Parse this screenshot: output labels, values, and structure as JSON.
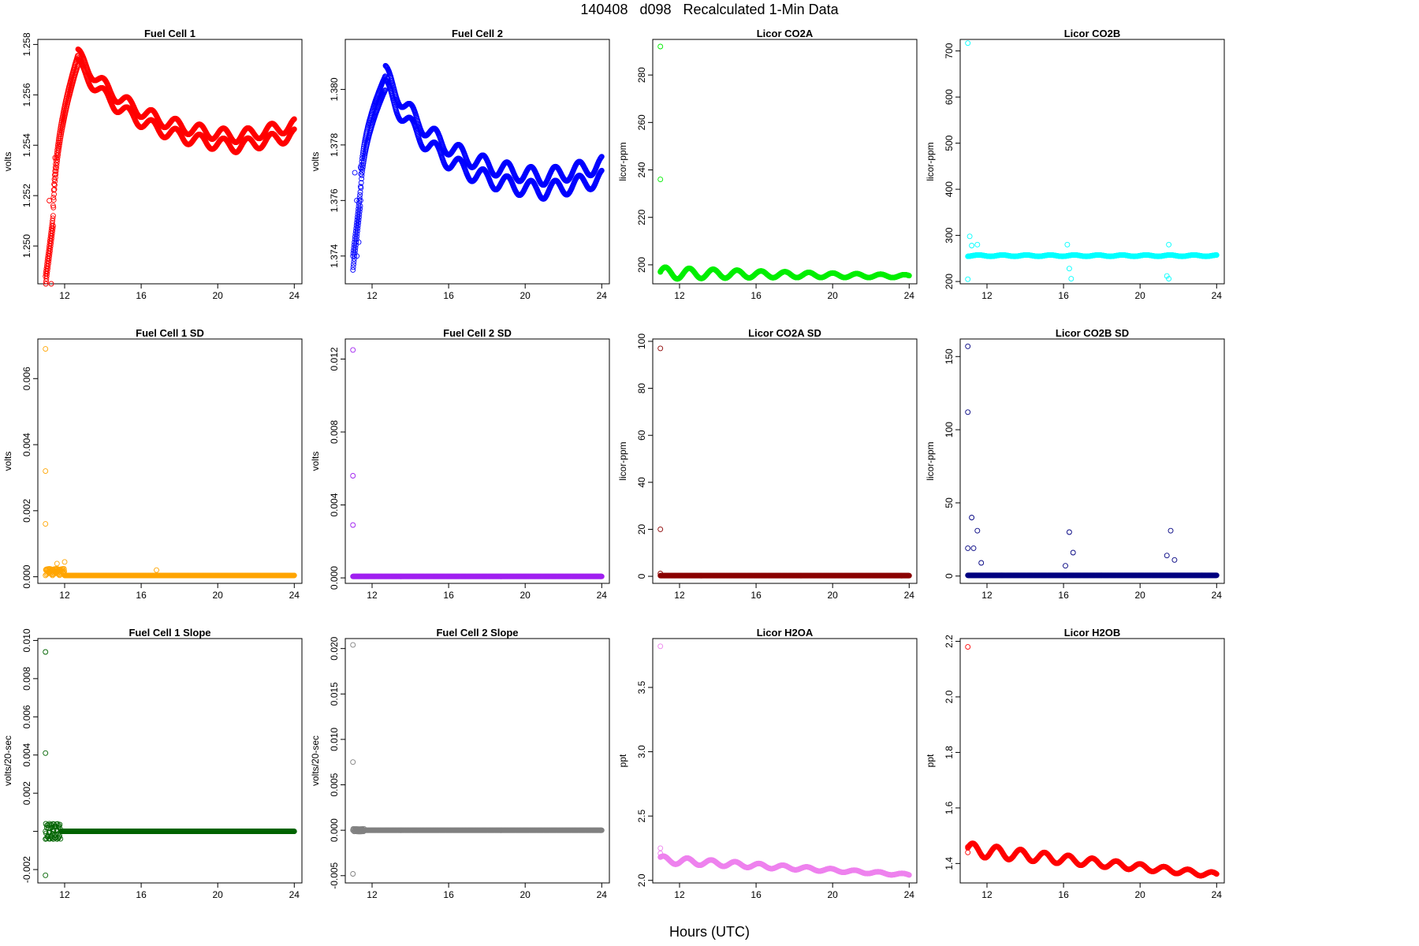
{
  "page": {
    "title": "140408   d098   Recalculated 1-Min Data",
    "xlabel": "Hours (UTC)"
  },
  "chart_data": [
    {
      "type": "scatter",
      "title": "Fuel Cell 1",
      "ylabel": "volts",
      "color": "#ff0000",
      "xlim": [
        10.6,
        24.4
      ],
      "ylim": [
        1.2485,
        1.2582
      ],
      "xticks": [
        12,
        16,
        20,
        24
      ],
      "yticks": [
        1.25,
        1.252,
        1.254,
        1.256,
        1.258
      ],
      "ytick_labels": [
        "1.250",
        "1.252",
        "1.254",
        "1.256",
        "1.258"
      ],
      "series": "fc1"
    },
    {
      "type": "scatter",
      "title": "Fuel Cell 2",
      "ylabel": "volts",
      "color": "#0000ff",
      "xlim": [
        10.6,
        24.4
      ],
      "ylim": [
        1.373,
        1.3818
      ],
      "xticks": [
        12,
        16,
        20,
        24
      ],
      "yticks": [
        1.374,
        1.376,
        1.378,
        1.38
      ],
      "ytick_labels": [
        "1.374",
        "1.376",
        "1.378",
        "1.380"
      ],
      "series": "fc2"
    },
    {
      "type": "scatter",
      "title": "Licor CO2A",
      "ylabel": "licor-ppm",
      "color": "#00ee00",
      "xlim": [
        10.6,
        24.4
      ],
      "ylim": [
        192,
        295
      ],
      "xticks": [
        12,
        16,
        20,
        24
      ],
      "yticks": [
        200,
        220,
        240,
        260,
        280
      ],
      "ytick_labels": [
        "200",
        "220",
        "240",
        "260",
        "280"
      ],
      "series": "co2a"
    },
    {
      "type": "scatter",
      "title": "Licor CO2B",
      "ylabel": "licor-ppm",
      "color": "#00ffff",
      "xlim": [
        10.6,
        24.4
      ],
      "ylim": [
        195,
        725
      ],
      "xticks": [
        12,
        16,
        20,
        24
      ],
      "yticks": [
        200,
        300,
        400,
        500,
        600,
        700
      ],
      "ytick_labels": [
        "200",
        "300",
        "400",
        "500",
        "600",
        "700"
      ],
      "series": "co2b"
    },
    {
      "type": "scatter",
      "title": "Fuel Cell 1 SD",
      "ylabel": "volts",
      "color": "#ffa500",
      "xlim": [
        10.6,
        24.4
      ],
      "ylim": [
        -0.0002,
        0.0072
      ],
      "xticks": [
        12,
        16,
        20,
        24
      ],
      "yticks": [
        0,
        0.002,
        0.004,
        0.006
      ],
      "ytick_labels": [
        "0.000",
        "0.002",
        "0.004",
        "0.006"
      ],
      "series": "fc1sd"
    },
    {
      "type": "scatter",
      "title": "Fuel Cell 2 SD",
      "ylabel": "volts",
      "color": "#a020f0",
      "xlim": [
        10.6,
        24.4
      ],
      "ylim": [
        -0.0003,
        0.0131
      ],
      "xticks": [
        12,
        16,
        20,
        24
      ],
      "yticks": [
        0,
        0.004,
        0.008,
        0.012
      ],
      "ytick_labels": [
        "0.000",
        "0.004",
        "0.008",
        "0.012"
      ],
      "series": "fc2sd"
    },
    {
      "type": "scatter",
      "title": "Licor CO2A SD",
      "ylabel": "licor-ppm",
      "color": "#8b0000",
      "xlim": [
        10.6,
        24.4
      ],
      "ylim": [
        -3,
        101
      ],
      "xticks": [
        12,
        16,
        20,
        24
      ],
      "yticks": [
        0,
        20,
        40,
        60,
        80,
        100
      ],
      "ytick_labels": [
        "0",
        "20",
        "40",
        "60",
        "80",
        "100"
      ],
      "series": "co2asd"
    },
    {
      "type": "scatter",
      "title": "Licor CO2B SD",
      "ylabel": "licor-ppm",
      "color": "#000080",
      "xlim": [
        10.6,
        24.4
      ],
      "ylim": [
        -5,
        162
      ],
      "xticks": [
        12,
        16,
        20,
        24
      ],
      "yticks": [
        0,
        50,
        100,
        150
      ],
      "ytick_labels": [
        "0",
        "50",
        "100",
        "150"
      ],
      "series": "co2bsd"
    },
    {
      "type": "scatter",
      "title": "Fuel Cell 1 Slope",
      "ylabel": "volts/20-sec",
      "color": "#006400",
      "xlim": [
        10.6,
        24.4
      ],
      "ylim": [
        -0.0027,
        0.0101
      ],
      "xticks": [
        12,
        16,
        20,
        24
      ],
      "yticks": [
        -0.002,
        0,
        0.002,
        0.004,
        0.006,
        0.008,
        0.01
      ],
      "ytick_labels": [
        "-0.002",
        "",
        "0.002",
        "0.004",
        "0.006",
        "0.008",
        "0.010"
      ],
      "series": "fc1slope"
    },
    {
      "type": "scatter",
      "title": "Fuel Cell 2 Slope",
      "ylabel": "volts/20-sec",
      "color": "#808080",
      "xlim": [
        10.6,
        24.4
      ],
      "ylim": [
        -0.0058,
        0.0211
      ],
      "xticks": [
        12,
        16,
        20,
        24
      ],
      "yticks": [
        -0.005,
        0,
        0.005,
        0.01,
        0.015,
        0.02
      ],
      "ytick_labels": [
        "-0.005",
        "0.000",
        "0.005",
        "0.010",
        "0.015",
        "0.020"
      ],
      "series": "fc2slope"
    },
    {
      "type": "scatter",
      "title": "Licor H2OA",
      "ylabel": "ppt",
      "color": "#ee82ee",
      "xlim": [
        10.6,
        24.4
      ],
      "ylim": [
        1.98,
        3.88
      ],
      "xticks": [
        12,
        16,
        20,
        24
      ],
      "yticks": [
        2.0,
        2.5,
        3.0,
        3.5
      ],
      "ytick_labels": [
        "2.0",
        "2.5",
        "3.0",
        "3.5"
      ],
      "series": "h2oa"
    },
    {
      "type": "scatter",
      "title": "Licor H2OB",
      "ylabel": "ppt",
      "color": "#ff0000",
      "xlim": [
        10.6,
        24.4
      ],
      "ylim": [
        1.33,
        2.21
      ],
      "xticks": [
        12,
        16,
        20,
        24
      ],
      "yticks": [
        1.4,
        1.6,
        1.8,
        2.0,
        2.2
      ],
      "ytick_labels": [
        "1.4",
        "1.6",
        "1.8",
        "2.0",
        "2.2"
      ],
      "series": "h2ob"
    }
  ]
}
